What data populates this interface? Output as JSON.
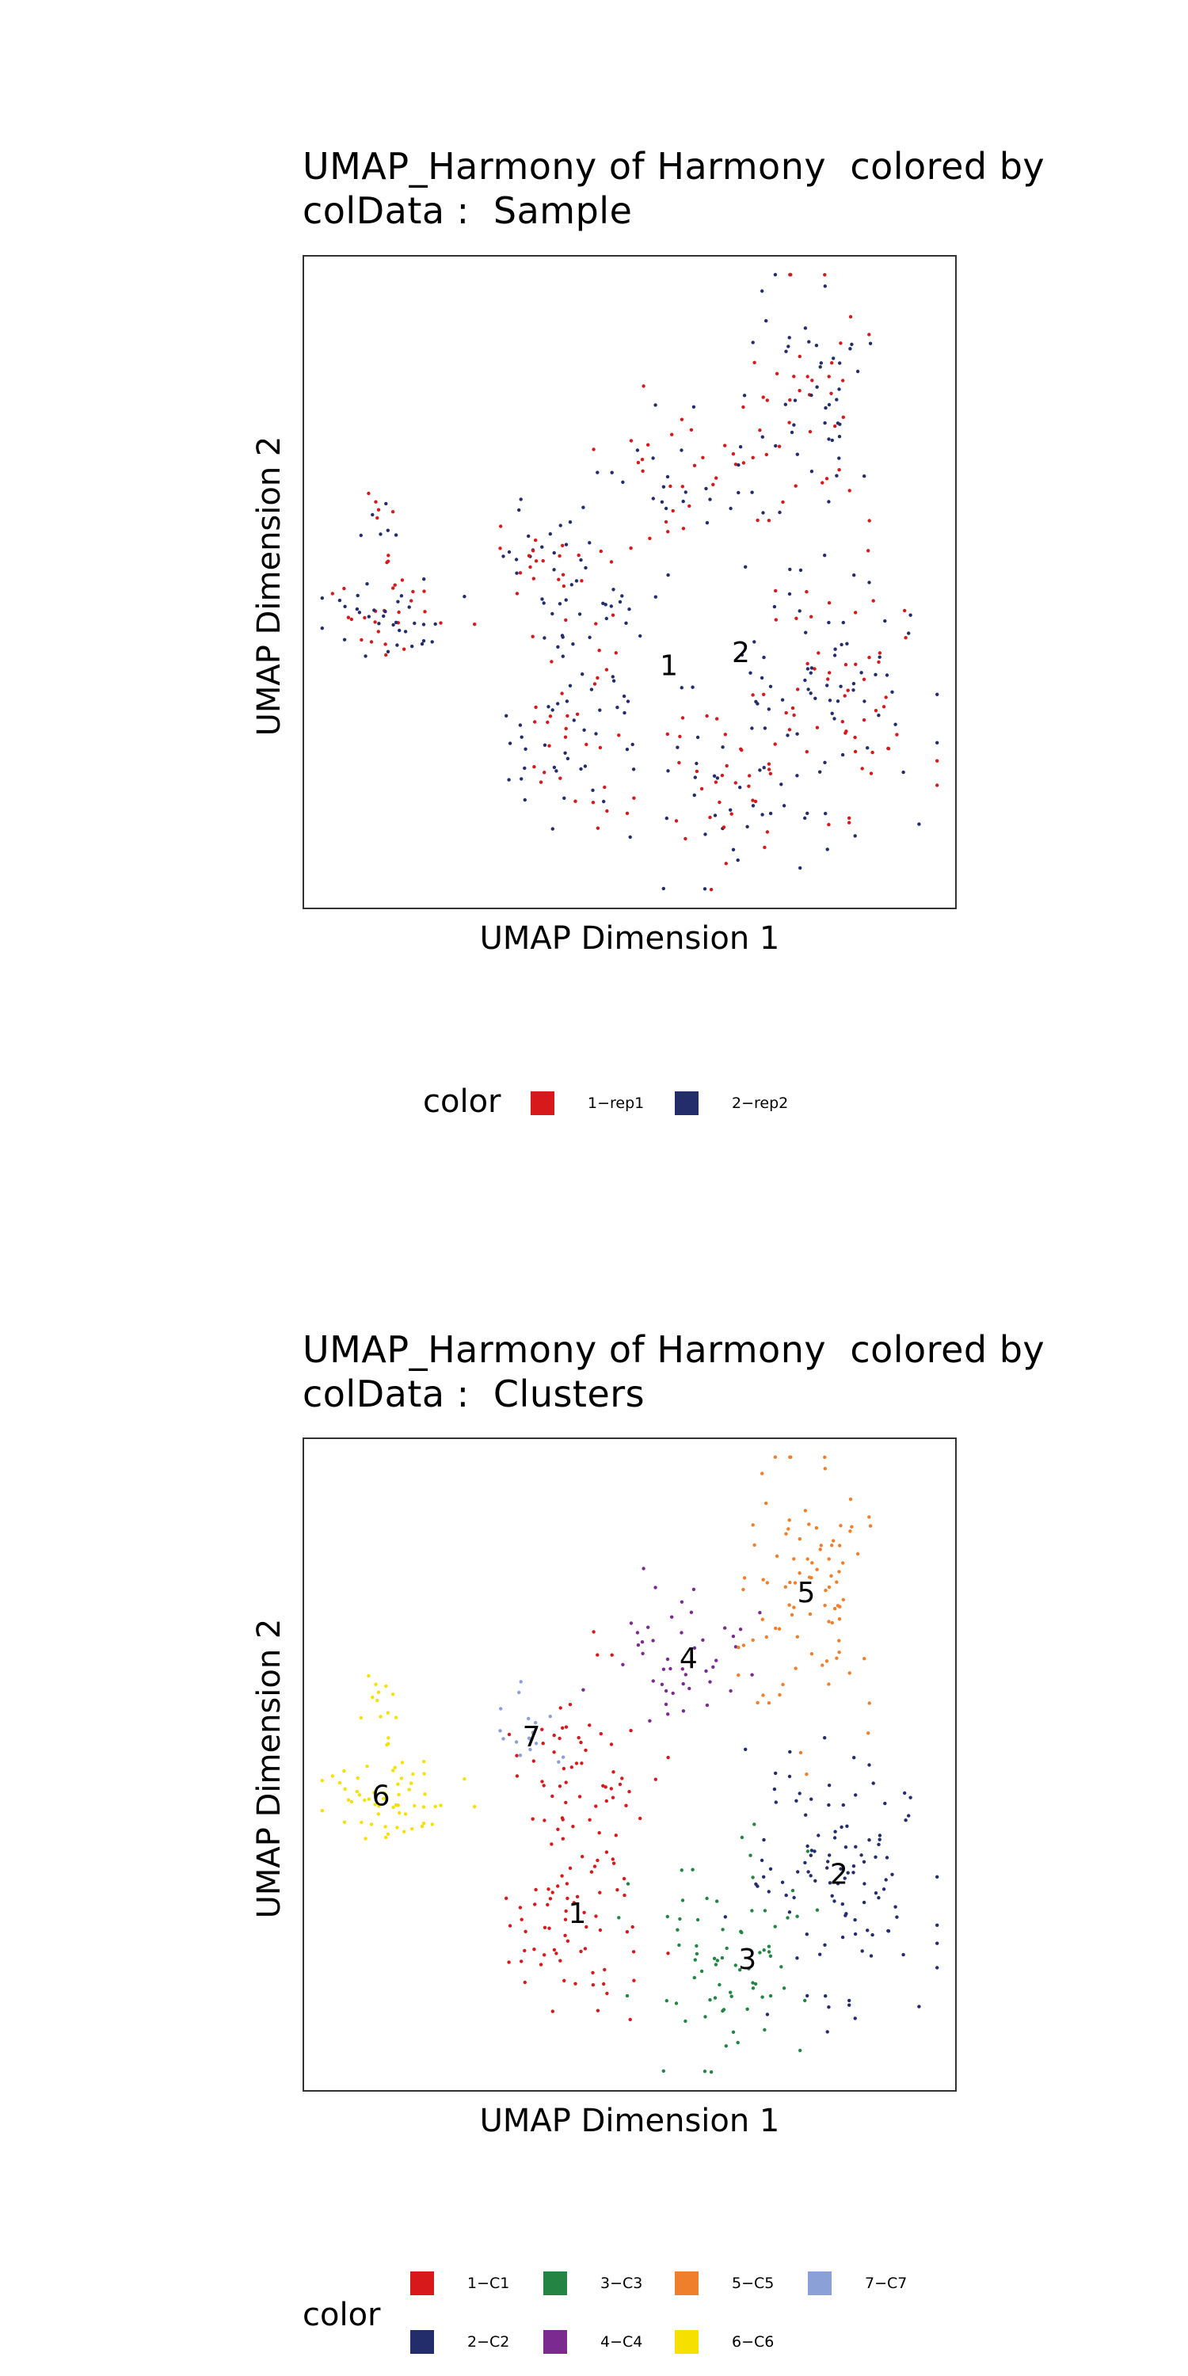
{
  "chart_data": [
    {
      "type": "scatter",
      "title_lines": [
        "UMAP_Harmony of Harmony  colored by",
        "colData :  Sample"
      ],
      "xlabel": "UMAP Dimension 1",
      "ylabel": "UMAP Dimension 2",
      "xlim": [
        0,
        100
      ],
      "ylim": [
        0,
        100
      ],
      "grid": false,
      "legend": {
        "title": "color",
        "placement": "bottom",
        "entries": [
          {
            "label": "1−rep1",
            "color": "#d7191c"
          },
          {
            "label": "2−rep2",
            "color": "#232d6b"
          }
        ]
      },
      "cluster_labels": [
        {
          "label": "1",
          "x": 56,
          "y": 37
        },
        {
          "label": "2",
          "x": 67,
          "y": 39
        }
      ]
    },
    {
      "type": "scatter",
      "title_lines": [
        "UMAP_Harmony of Harmony  colored by",
        "colData :  Clusters"
      ],
      "xlabel": "UMAP Dimension 1",
      "ylabel": "UMAP Dimension 2",
      "xlim": [
        0,
        100
      ],
      "ylim": [
        0,
        100
      ],
      "grid": false,
      "legend": {
        "title": "color",
        "placement": "bottom",
        "entries": [
          {
            "label": "1−C1",
            "color": "#d7191c"
          },
          {
            "label": "2−C2",
            "color": "#232d6b"
          },
          {
            "label": "3−C3",
            "color": "#238443"
          },
          {
            "label": "4−C4",
            "color": "#7b2b8f"
          },
          {
            "label": "5−C5",
            "color": "#f07f2b"
          },
          {
            "label": "6−C6",
            "color": "#f5e000"
          },
          {
            "label": "7−C7",
            "color": "#8ca0d8"
          }
        ]
      },
      "cluster_labels": [
        {
          "label": "1",
          "x": 42,
          "y": 27
        },
        {
          "label": "2",
          "x": 82,
          "y": 33
        },
        {
          "label": "3",
          "x": 68,
          "y": 20
        },
        {
          "label": "4",
          "x": 59,
          "y": 66
        },
        {
          "label": "5",
          "x": 77,
          "y": 76
        },
        {
          "label": "6",
          "x": 12,
          "y": 45
        },
        {
          "label": "7",
          "x": 35,
          "y": 54
        }
      ]
    }
  ]
}
